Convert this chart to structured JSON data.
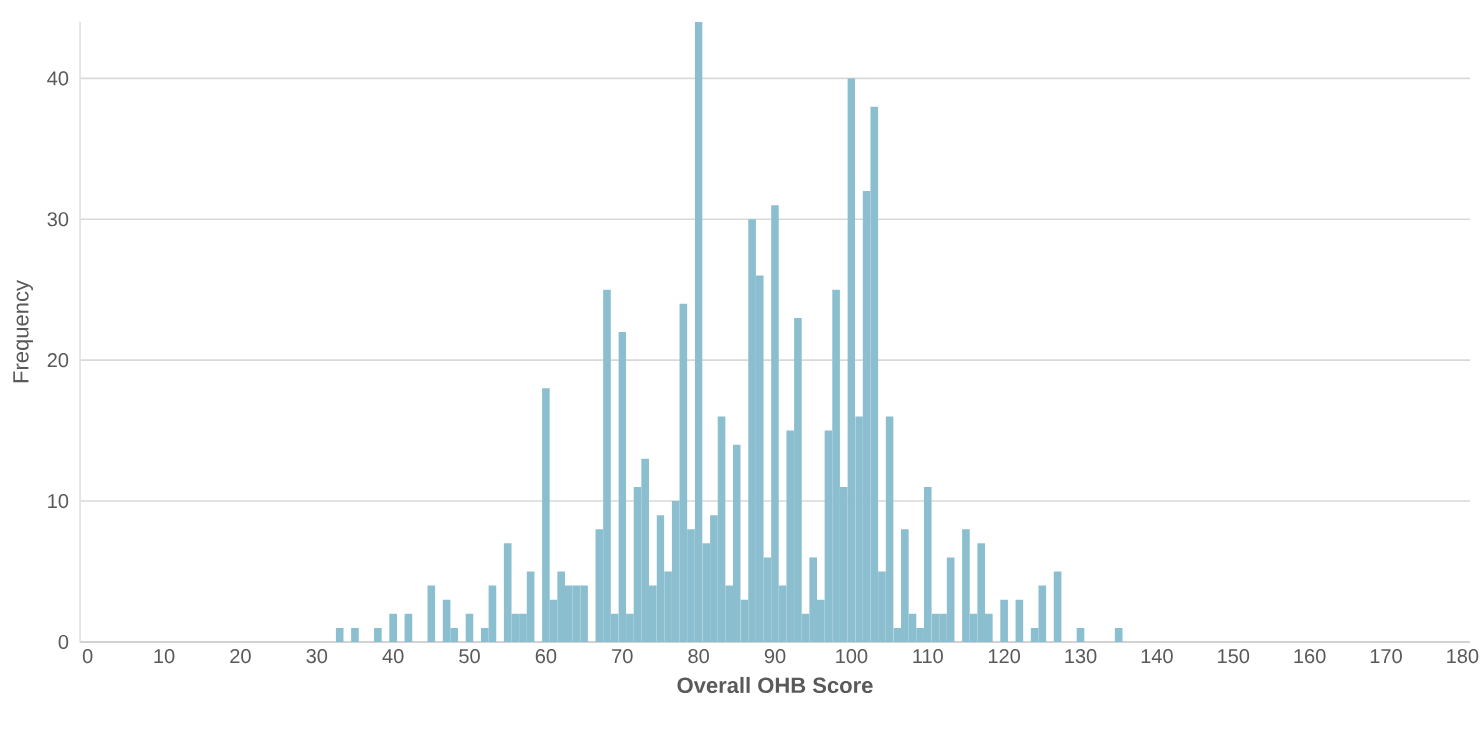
{
  "chart_data": {
    "type": "histogram",
    "xlabel": "Overall OHB Score",
    "ylabel": "Frequency",
    "color": "#8bbfcf",
    "bins": [
      32.5,
      33.5,
      34.5,
      35.5,
      36.5,
      37.5,
      38.5,
      39.5,
      40.5,
      41.5,
      42.5,
      43.5,
      44.5,
      45.5,
      46.5,
      47.5,
      48.5,
      49.5,
      50.5,
      51.5,
      52.5,
      53.5,
      54.5,
      55.5,
      56.5,
      57.5,
      58.5,
      59.5,
      60.5,
      61.5,
      62.5,
      63.5,
      64.5,
      65.5,
      66.5,
      67.5,
      68.5,
      69.5,
      70.5,
      71.5,
      72.5,
      73.5,
      74.5,
      75.5,
      76.5,
      77.5,
      78.5,
      79.5,
      80.5,
      81.5,
      82.5,
      83.5,
      84.5,
      85.5,
      86.5,
      87.5,
      88.5,
      89.5,
      90.5,
      91.5,
      92.5,
      93.5,
      94.5,
      95.5,
      96.5,
      97.5,
      98.5,
      99.5,
      100.5,
      101.5,
      102.5,
      103.5,
      104.5,
      105.5,
      106.5,
      107.5,
      108.5,
      109.5,
      110.5,
      111.5,
      112.5,
      113.5,
      114.5,
      115.5,
      116.5,
      117.5,
      118.5,
      119.5,
      120.5,
      121.5,
      122.5,
      123.5,
      124.5,
      125.5,
      126.5,
      127.5,
      128.5,
      129.5,
      130.5,
      131.5,
      132.5,
      133.5,
      134.5,
      135.5
    ],
    "values": [
      1,
      0,
      1,
      0,
      0,
      1,
      0,
      2,
      0,
      2,
      0,
      0,
      4,
      0,
      3,
      1,
      0,
      2,
      0,
      1,
      4,
      0,
      7,
      2,
      2,
      5,
      0,
      18,
      3,
      5,
      4,
      4,
      4,
      0,
      8,
      25,
      2,
      22,
      2,
      11,
      13,
      4,
      9,
      5,
      10,
      24,
      8,
      44,
      7,
      9,
      16,
      4,
      14,
      3,
      30,
      26,
      6,
      31,
      4,
      15,
      23,
      2,
      6,
      3,
      15,
      25,
      11,
      40,
      16,
      32,
      38,
      5,
      16,
      1,
      8,
      2,
      1,
      11,
      2,
      2,
      6,
      0,
      8,
      2,
      7,
      2,
      0,
      3,
      0,
      3,
      0,
      1,
      4,
      0,
      5,
      0,
      0,
      1,
      0,
      0,
      0,
      0,
      1
    ],
    "xlim": [
      -1,
      181
    ],
    "xticks": [
      0,
      10,
      20,
      30,
      40,
      50,
      60,
      70,
      80,
      90,
      100,
      110,
      120,
      130,
      140,
      150,
      160,
      170,
      180
    ],
    "ylim": [
      0,
      44
    ],
    "yticks": [
      0,
      10,
      20,
      30,
      40
    ],
    "grid": "y"
  }
}
